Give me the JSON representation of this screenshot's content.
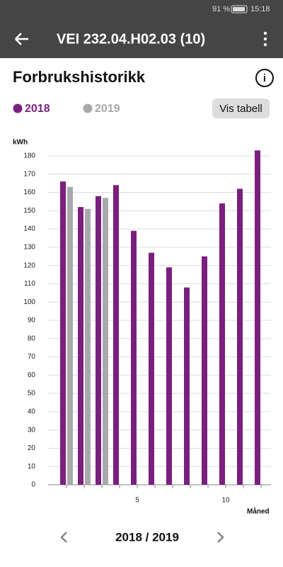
{
  "status_bar": {
    "battery": "91 %",
    "time": "15:18"
  },
  "header": {
    "title": "VEI 232.04.H02.03 (10)"
  },
  "section_title": "Forbrukshistorikk",
  "button": "Vis tabell",
  "chart_data": {
    "type": "bar",
    "ylabel": "kWh",
    "xlabel": "Måned",
    "categories": [
      null,
      null,
      null,
      null,
      "5",
      null,
      null,
      null,
      null,
      "10",
      null,
      null
    ],
    "series": [
      {
        "name": "2018",
        "color": "#7b1f7f",
        "values": [
          166,
          152,
          158,
          164,
          139,
          127,
          119,
          108,
          125,
          154,
          162,
          183
        ]
      },
      {
        "name": "2019",
        "color": "#a9a9ad",
        "values": [
          163,
          151,
          157,
          null,
          null,
          null,
          null,
          null,
          null,
          null,
          null,
          null
        ]
      }
    ],
    "ylim": [
      0,
      185
    ],
    "yticks": [
      0,
      10,
      20,
      30,
      40,
      50,
      60,
      70,
      80,
      90,
      100,
      110,
      120,
      130,
      140,
      150,
      160,
      170,
      180
    ],
    "grid": true
  },
  "footer": {
    "period": "2018 / 2019"
  }
}
